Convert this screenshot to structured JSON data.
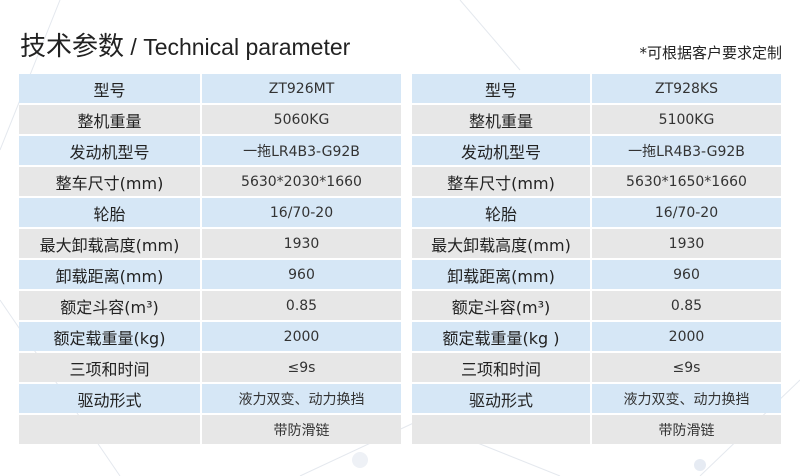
{
  "header": {
    "title_cn": "技术参数",
    "separator": " / ",
    "title_en": "Technical parameter",
    "note": "*可根据客户要求定制"
  },
  "tables": [
    {
      "rows": [
        {
          "label": "型号",
          "value": "ZT926MT"
        },
        {
          "label": "整机重量",
          "value": "5060KG"
        },
        {
          "label": "发动机型号",
          "value": "一拖LR4B3-G92B"
        },
        {
          "label": "整车尺寸(mm)",
          "value": "5630*2030*1660"
        },
        {
          "label": "轮胎",
          "value": "16/70-20"
        },
        {
          "label": "最大卸载高度(mm)",
          "value": "1930"
        },
        {
          "label": "卸载距离(mm)",
          "value": "960"
        },
        {
          "label": "额定斗容(m³)",
          "value": "0.85"
        },
        {
          "label": "额定载重量(kg)",
          "value": "2000"
        },
        {
          "label": "三项和时间",
          "value": "≤9s"
        },
        {
          "label": "驱动形式",
          "value": "液力双变、动力换挡"
        },
        {
          "label": "",
          "value": "带防滑链"
        }
      ]
    },
    {
      "rows": [
        {
          "label": "型号",
          "value": "ZT928KS"
        },
        {
          "label": "整机重量",
          "value": "5100KG"
        },
        {
          "label": "发动机型号",
          "value": "一拖LR4B3-G92B"
        },
        {
          "label": "整车尺寸(mm)",
          "value": "5630*1650*1660"
        },
        {
          "label": "轮胎",
          "value": "16/70-20"
        },
        {
          "label": "最大卸载高度(mm)",
          "value": "1930"
        },
        {
          "label": "卸载距离(mm)",
          "value": "960"
        },
        {
          "label": "额定斗容(m³)",
          "value": "0.85"
        },
        {
          "label": "额定载重量(kg )",
          "value": "2000"
        },
        {
          "label": "三项和时间",
          "value": "≤9s"
        },
        {
          "label": "驱动形式",
          "value": "液力双变、动力换挡"
        },
        {
          "label": "",
          "value": "带防滑链"
        }
      ]
    }
  ],
  "colors": {
    "row_blue": "#d6e7f6",
    "row_gray": "#e7e7e7"
  }
}
